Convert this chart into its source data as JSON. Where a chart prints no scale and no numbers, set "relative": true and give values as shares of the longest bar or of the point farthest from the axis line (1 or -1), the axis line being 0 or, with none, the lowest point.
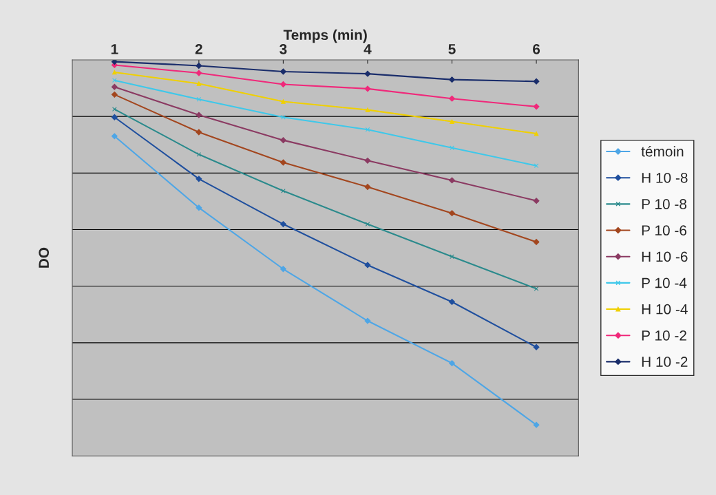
{
  "chart_data": {
    "type": "line",
    "xlabel": "Temps (min)",
    "ylabel": "DO",
    "relative": true,
    "categories": [
      "1",
      "2",
      "3",
      "4",
      "5",
      "6"
    ],
    "grid": "y",
    "legend": "right",
    "series": [
      {
        "name": "témoin",
        "color": "#4ea6e6",
        "marker": "diamond",
        "values": [
          -0.209,
          -0.405,
          -0.573,
          -0.715,
          -0.831,
          -1
        ]
      },
      {
        "name": "H 10 -8",
        "color": "#1f4f9e",
        "marker": "diamond",
        "values": [
          -0.157,
          -0.326,
          -0.45,
          -0.562,
          -0.663,
          -0.787
        ]
      },
      {
        "name": "P 10 -8",
        "color": "#2a8a8c",
        "marker": "cross",
        "values": [
          -0.135,
          -0.259,
          -0.359,
          -0.45,
          -0.539,
          -0.627
        ]
      },
      {
        "name": "P 10 -6",
        "color": "#a3461e",
        "marker": "diamond",
        "values": [
          -0.095,
          -0.198,
          -0.281,
          -0.348,
          -0.42,
          -0.499
        ]
      },
      {
        "name": "H 10 -6",
        "color": "#8b3a62",
        "marker": "diamond",
        "values": [
          -0.074,
          -0.151,
          -0.22,
          -0.276,
          -0.33,
          -0.386
        ]
      },
      {
        "name": "P 10 -4",
        "color": "#3ec8ea",
        "marker": "cross",
        "values": [
          -0.056,
          -0.108,
          -0.157,
          -0.191,
          -0.241,
          -0.29
        ]
      },
      {
        "name": "H 10 -4",
        "color": "#f0d000",
        "marker": "triangle",
        "values": [
          -0.034,
          -0.065,
          -0.114,
          -0.137,
          -0.169,
          -0.202
        ]
      },
      {
        "name": "P 10 -2",
        "color": "#f0287a",
        "marker": "diamond",
        "values": [
          -0.014,
          -0.036,
          -0.067,
          -0.079,
          -0.106,
          -0.128
        ]
      },
      {
        "name": "H 10 -2",
        "color": "#1a2d6b",
        "marker": "diamond",
        "values": [
          -0.005,
          -0.016,
          -0.032,
          -0.038,
          -0.054,
          -0.059
        ]
      }
    ]
  }
}
